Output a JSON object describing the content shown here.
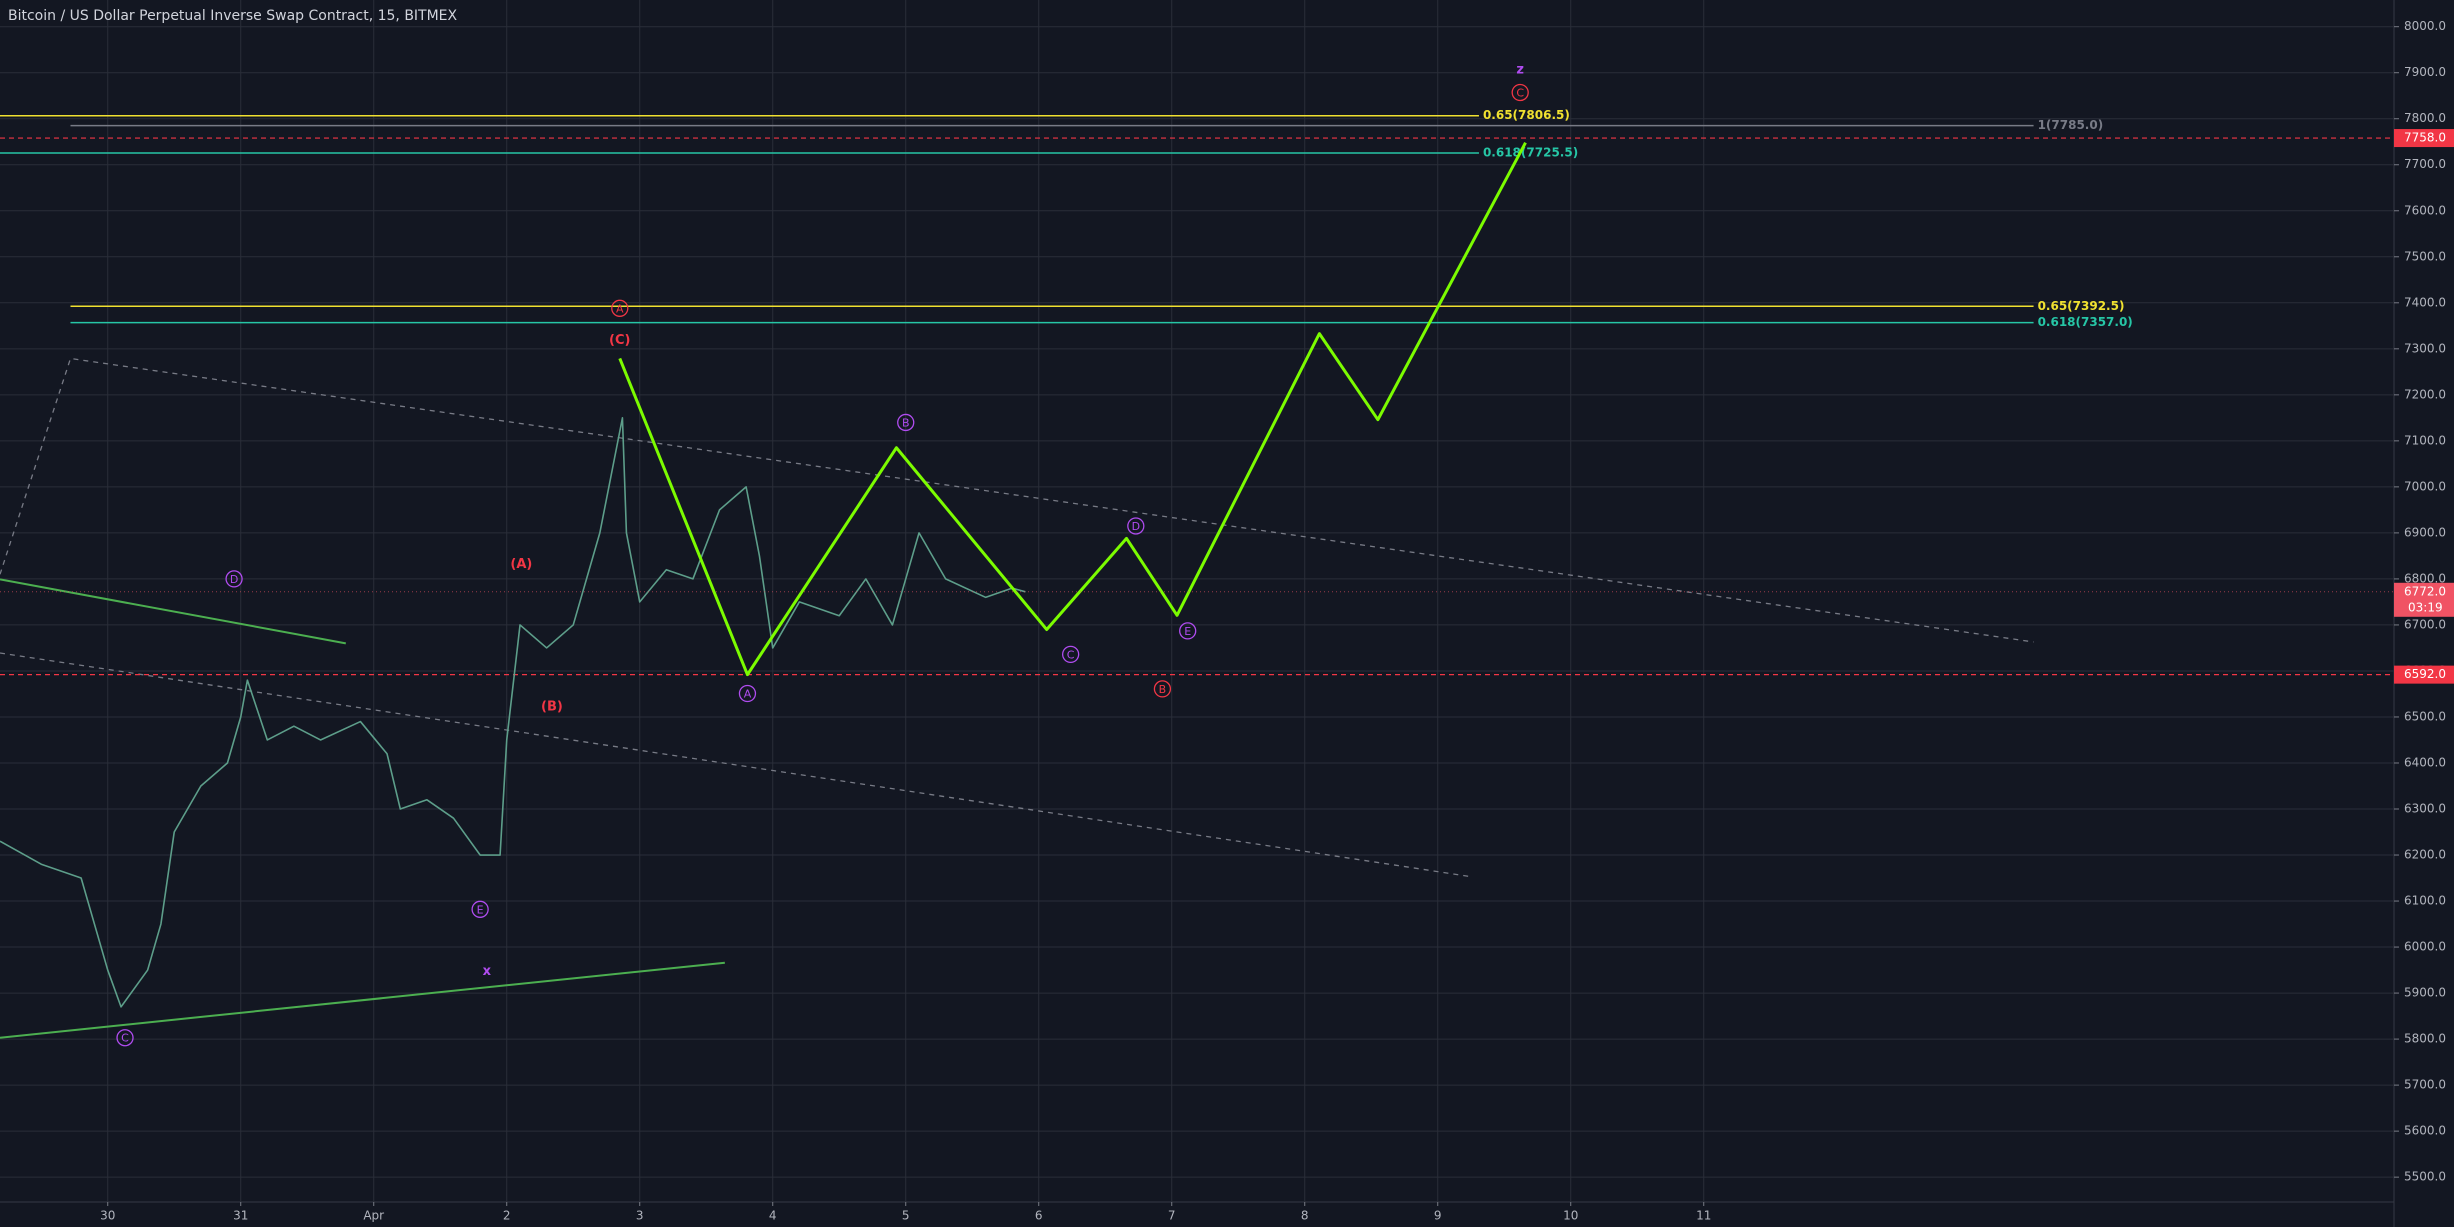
{
  "chart_data": {
    "type": "line",
    "title": "Bitcoin / US Dollar Perpetual Inverse Swap Contract, 15, BITMEX",
    "xlim": [
      -0.81,
      17.19
    ],
    "ylim": [
      5446,
      8058
    ],
    "grid": true,
    "background": "#131722",
    "xticks": [
      {
        "value": 0,
        "label": "30"
      },
      {
        "value": 1,
        "label": "31"
      },
      {
        "value": 2,
        "label": "Apr"
      },
      {
        "value": 3,
        "label": "2"
      },
      {
        "value": 4,
        "label": "3"
      },
      {
        "value": 5,
        "label": "4"
      },
      {
        "value": 6,
        "label": "5"
      },
      {
        "value": 7,
        "label": "6"
      },
      {
        "value": 8,
        "label": "7"
      },
      {
        "value": 9,
        "label": "8"
      },
      {
        "value": 10,
        "label": "9"
      },
      {
        "value": 11,
        "label": "10"
      },
      {
        "value": 12,
        "label": "11"
      }
    ],
    "yticks": [
      {
        "value": 5500,
        "label": "5500.0"
      },
      {
        "value": 5600,
        "label": "5600.0"
      },
      {
        "value": 5700,
        "label": "5700.0"
      },
      {
        "value": 5800,
        "label": "5800.0"
      },
      {
        "value": 5900,
        "label": "5900.0"
      },
      {
        "value": 6000,
        "label": "6000.0"
      },
      {
        "value": 6100,
        "label": "6100.0"
      },
      {
        "value": 6200,
        "label": "6200.0"
      },
      {
        "value": 6300,
        "label": "6300.0"
      },
      {
        "value": 6400,
        "label": "6400.0"
      },
      {
        "value": 6500,
        "label": "6500.0"
      },
      {
        "value": 6600,
        "label": "6600.0"
      },
      {
        "value": 6700,
        "label": "6700.0"
      },
      {
        "value": 6800,
        "label": "6800.0"
      },
      {
        "value": 6900,
        "label": "6900.0"
      },
      {
        "value": 7000,
        "label": "7000.0"
      },
      {
        "value": 7100,
        "label": "7100.0"
      },
      {
        "value": 7200,
        "label": "7200.0"
      },
      {
        "value": 7300,
        "label": "7300.0"
      },
      {
        "value": 7400,
        "label": "7400.0"
      },
      {
        "value": 7500,
        "label": "7500.0"
      },
      {
        "value": 7600,
        "label": "7600.0"
      },
      {
        "value": 7700,
        "label": "7700.0"
      },
      {
        "value": 7800,
        "label": "7800.0"
      },
      {
        "value": 7900,
        "label": "7900.0"
      },
      {
        "value": 8000,
        "label": "8000.0"
      }
    ],
    "series": [
      {
        "color": "#5d9e8a",
        "x": [
          -0.81,
          -0.5,
          -0.2,
          0,
          0.1,
          0.3,
          0.4,
          0.5,
          0.7,
          0.9,
          1.0,
          1.05,
          1.2,
          1.4,
          1.6,
          1.9,
          2.1,
          2.2,
          2.4,
          2.6,
          2.8,
          2.95,
          3.0,
          3.1,
          3.3,
          3.5,
          3.7,
          3.87,
          3.9,
          4.0,
          4.2,
          4.4,
          4.6,
          4.8,
          4.9,
          5.0,
          5.2,
          5.5,
          5.7,
          5.9,
          6.0,
          6.1,
          6.3,
          6.6,
          6.8,
          6.9
        ],
        "values": [
          6230,
          6180,
          6150,
          5950,
          5870,
          5950,
          6050,
          6250,
          6350,
          6400,
          6500,
          6580,
          6450,
          6480,
          6450,
          6490,
          6420,
          6300,
          6320,
          6280,
          6200,
          6200,
          6450,
          6700,
          6650,
          6700,
          6900,
          7150,
          6900,
          6750,
          6820,
          6800,
          6950,
          7000,
          6850,
          6650,
          6750,
          6720,
          6800,
          6700,
          6800,
          6900,
          6800,
          6760,
          6780,
          6772
        ]
      },
      {
        "color": "#7cfc00",
        "x": [
          3.85,
          4.81,
          5.93,
          7.06,
          7.66,
          8.04,
          9.11,
          9.55,
          10.66
        ],
        "values": [
          7279,
          6592,
          7085,
          6690,
          6888,
          6721,
          7333,
          7146,
          7748
        ]
      }
    ],
    "trendlines": [
      {
        "color": "#4caf50",
        "dash": false,
        "x": [
          -0.81,
          1.79
        ],
        "values": [
          6799,
          6660
        ]
      },
      {
        "color": "#4caf50",
        "dash": false,
        "x": [
          -0.81,
          4.64
        ],
        "values": [
          5803,
          5966
        ]
      },
      {
        "color": "#787b86",
        "dash": true,
        "x": [
          -0.81,
          -0.28,
          14.48
        ],
        "values": [
          6810,
          7279,
          6663
        ]
      },
      {
        "color": "#787b86",
        "dash": true,
        "x": [
          -0.81,
          10.25
        ],
        "values": [
          6639,
          6153
        ]
      }
    ],
    "levels": [
      {
        "label": "0.65(7806.5)",
        "value": 7806.5,
        "color": "#f0e130",
        "x": [
          -0.81,
          10.31
        ]
      },
      {
        "label": "1(7785.0)",
        "value": 7785.0,
        "color": "#787b86",
        "x": [
          -0.28,
          14.48
        ]
      },
      {
        "label": "0.618(7725.5)",
        "value": 7725.5,
        "color": "#26c6a6",
        "x": [
          -0.81,
          10.31
        ]
      },
      {
        "label": "0.65(7392.5)",
        "value": 7392.5,
        "color": "#f0e130",
        "x": [
          -0.28,
          14.48
        ]
      },
      {
        "label": "0.618(7357.0)",
        "value": 7357.0,
        "color": "#26c6a6",
        "x": [
          -0.28,
          14.48
        ]
      }
    ],
    "markers": [
      {
        "value": 7758.0,
        "label": "7758.0",
        "color": "#f23645"
      },
      {
        "value": 6592.0,
        "label": "6592.0",
        "color": "#f23645"
      }
    ],
    "last_price": {
      "value": 6772.0,
      "label": "6772.0",
      "timer": "03:19",
      "color": "#f05364"
    },
    "annotations": [
      {
        "label": "D",
        "x": 0.95,
        "y": 6800,
        "color": "#b04cf0",
        "circled": true
      },
      {
        "label": "C",
        "x": 0.13,
        "y": 5803,
        "color": "#b04cf0",
        "circled": true
      },
      {
        "label": "E",
        "x": 2.8,
        "y": 6082,
        "color": "#b04cf0",
        "circled": true
      },
      {
        "label": "x",
        "x": 2.85,
        "y": 5949,
        "color": "#b04cf0",
        "circled": false
      },
      {
        "label": "(A)",
        "x": 3.11,
        "y": 6833,
        "color": "#f23645",
        "circled": false
      },
      {
        "label": "(B)",
        "x": 3.34,
        "y": 6524,
        "color": "#f23645",
        "circled": false
      },
      {
        "label": "(C)",
        "x": 3.85,
        "y": 7320,
        "color": "#f23645",
        "circled": false
      },
      {
        "label": "A",
        "x": 3.85,
        "y": 7388,
        "color": "#f23645",
        "circled": true
      },
      {
        "label": "A",
        "x": 4.81,
        "y": 6551,
        "color": "#b04cf0",
        "circled": true
      },
      {
        "label": "B",
        "x": 6.0,
        "y": 7140,
        "color": "#b04cf0",
        "circled": true
      },
      {
        "label": "C",
        "x": 7.24,
        "y": 6636,
        "color": "#b04cf0",
        "circled": true
      },
      {
        "label": "D",
        "x": 7.73,
        "y": 6915,
        "color": "#b04cf0",
        "circled": true
      },
      {
        "label": "E",
        "x": 8.12,
        "y": 6687,
        "color": "#b04cf0",
        "circled": true
      },
      {
        "label": "B",
        "x": 7.93,
        "y": 6561,
        "color": "#f23645",
        "circled": true
      },
      {
        "label": "C",
        "x": 10.62,
        "y": 7857,
        "color": "#f23645",
        "circled": true
      },
      {
        "label": "z",
        "x": 10.62,
        "y": 7908,
        "color": "#b04cf0",
        "circled": false
      }
    ]
  }
}
